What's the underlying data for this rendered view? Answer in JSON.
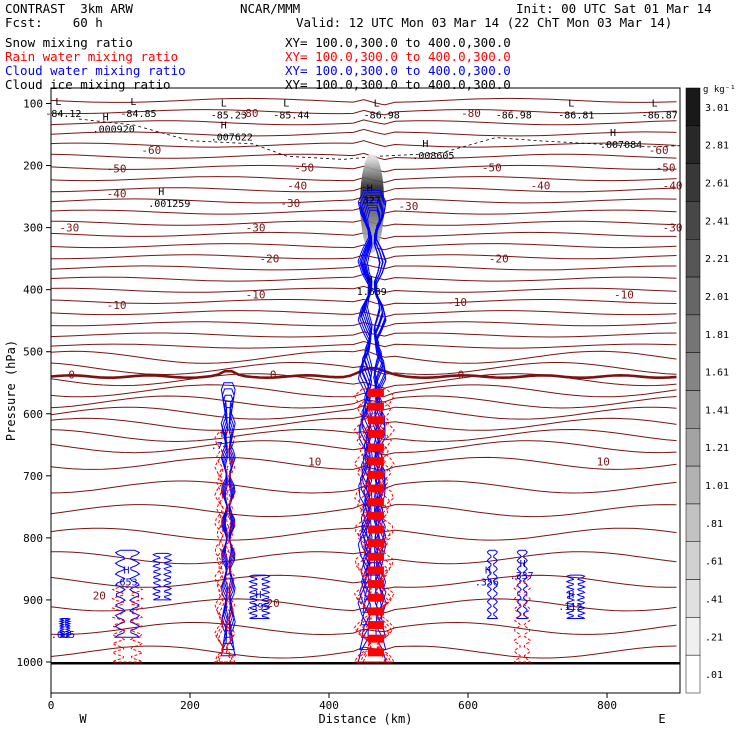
{
  "header": {
    "left": [
      "CONTRAST  3km ARW",
      "Fcst:    60 h"
    ],
    "center_top": "NCAR/MMM",
    "init": "Init: 00 UTC Sat 01 Mar 14",
    "valid": "Valid: 12 UTC Mon 03 Mar 14 (22 ChT Mon 03 Mar 14)",
    "fields": [
      {
        "label": "Snow mixing ratio",
        "xy": "XY= 100.0,300.0 to 400.0,300.0",
        "color": "#000000"
      },
      {
        "label": "Rain water mixing ratio",
        "xy": "XY= 100.0,300.0 to 400.0,300.0",
        "color": "#ff0000"
      },
      {
        "label": "Cloud water mixing ratio",
        "xy": "XY= 100.0,300.0 to 400.0,300.0",
        "color": "#0000ff"
      },
      {
        "label": "Cloud ice mixing ratio",
        "xy": "XY= 100.0,300.0 to 400.0,300.0",
        "color": "#000000"
      }
    ]
  },
  "chart_data": {
    "type": "heatmap",
    "xlabel": "Distance (km)",
    "ylabel": "Pressure (hPa)",
    "xlim": [
      0,
      905
    ],
    "ylim": [
      1050,
      75
    ],
    "x_ticks": [
      0,
      200,
      400,
      600,
      800
    ],
    "y_ticks": [
      100,
      200,
      300,
      400,
      500,
      600,
      700,
      800,
      900,
      1000
    ],
    "x_end_labels": {
      "left": "W",
      "right": "E"
    },
    "colorbar": {
      "unit": "g kg⁻¹",
      "levels": [
        ".01",
        ".21",
        ".41",
        ".61",
        ".81",
        "1.01",
        "1.21",
        "1.41",
        "1.61",
        "1.81",
        "2.01",
        "2.21",
        "2.41",
        "2.61",
        "2.81",
        "3.01"
      ]
    },
    "temperature_contours": {
      "color": "#7a1414",
      "labels": [
        {
          "x": 280,
          "p": 300,
          "text": "-30"
        },
        {
          "x": 330,
          "p": 260,
          "text": "-30"
        },
        {
          "x": 500,
          "p": 265,
          "text": "-30"
        },
        {
          "x": 880,
          "p": 300,
          "text": "-30"
        },
        {
          "x": 12,
          "p": 300,
          "text": "-30"
        },
        {
          "x": 80,
          "p": 245,
          "text": "-40"
        },
        {
          "x": 340,
          "p": 232,
          "text": "-40"
        },
        {
          "x": 690,
          "p": 232,
          "text": "-40"
        },
        {
          "x": 880,
          "p": 232,
          "text": "-40"
        },
        {
          "x": 80,
          "p": 205,
          "text": "-50"
        },
        {
          "x": 350,
          "p": 203,
          "text": "-50"
        },
        {
          "x": 620,
          "p": 203,
          "text": "-50"
        },
        {
          "x": 870,
          "p": 203,
          "text": "-50"
        },
        {
          "x": 130,
          "p": 175,
          "text": "-60"
        },
        {
          "x": 860,
          "p": 175,
          "text": "-60"
        },
        {
          "x": 270,
          "p": 115,
          "text": "-80"
        },
        {
          "x": 590,
          "p": 115,
          "text": "-80"
        },
        {
          "x": 300,
          "p": 350,
          "text": "-20"
        },
        {
          "x": 630,
          "p": 350,
          "text": "-20"
        },
        {
          "x": 280,
          "p": 408,
          "text": "-10"
        },
        {
          "x": 80,
          "p": 425,
          "text": "-10"
        },
        {
          "x": 570,
          "p": 420,
          "text": "-10"
        },
        {
          "x": 810,
          "p": 408,
          "text": "-10"
        },
        {
          "x": 25,
          "p": 537,
          "text": "0"
        },
        {
          "x": 315,
          "p": 537,
          "text": "0"
        },
        {
          "x": 585,
          "p": 537,
          "text": "0"
        },
        {
          "x": 370,
          "p": 677,
          "text": "10"
        },
        {
          "x": 785,
          "p": 677,
          "text": "10"
        },
        {
          "x": 60,
          "p": 893,
          "text": "20"
        },
        {
          "x": 310,
          "p": 905,
          "text": "20"
        }
      ]
    },
    "extrema": [
      {
        "x": 12,
        "p": 115,
        "label": "L",
        "value": "-84.12"
      },
      {
        "x": 120,
        "p": 115,
        "label": "L",
        "value": "-84.85"
      },
      {
        "x": 250,
        "p": 118,
        "label": "L",
        "value": "-85.23"
      },
      {
        "x": 340,
        "p": 118,
        "label": "L",
        "value": "-85.44"
      },
      {
        "x": 470,
        "p": 118,
        "label": "L",
        "value": "-86.98"
      },
      {
        "x": 750,
        "p": 118,
        "label": "L",
        "value": "-86.81"
      },
      {
        "x": 870,
        "p": 118,
        "label": "L",
        "value": "-86.87"
      },
      {
        "x": 660,
        "p": 118,
        "label": "",
        "value": "-86.98"
      },
      {
        "x": 80,
        "p": 140,
        "label": "H",
        "value": ".000920"
      },
      {
        "x": 250,
        "p": 153,
        "label": "H",
        "value": ".007622"
      },
      {
        "x": 540,
        "p": 183,
        "label": "H",
        "value": ".008605"
      },
      {
        "x": 810,
        "p": 165,
        "label": "H",
        "value": ".007084"
      },
      {
        "x": 160,
        "p": 260,
        "label": "H",
        "value": ".001259"
      },
      {
        "x": 460,
        "p": 255,
        "label": "H",
        "value": ".327"
      },
      {
        "x": 460,
        "p": 402,
        "label": "H",
        "value": "1.639"
      },
      {
        "x": 250,
        "p": 650,
        "label": "H",
        "value": ".747"
      },
      {
        "x": 110,
        "p": 870,
        "label": "H",
        "value": ".653"
      },
      {
        "x": 300,
        "p": 910,
        "label": "H",
        "value": ".395"
      },
      {
        "x": 630,
        "p": 870,
        "label": "H",
        "value": ".356"
      },
      {
        "x": 680,
        "p": 860,
        "label": "H",
        "value": ".337"
      },
      {
        "x": 750,
        "p": 910,
        "label": "H",
        "value": ".112"
      },
      {
        "x": 20,
        "p": 955,
        "label": "H",
        "value": ".065"
      }
    ]
  }
}
